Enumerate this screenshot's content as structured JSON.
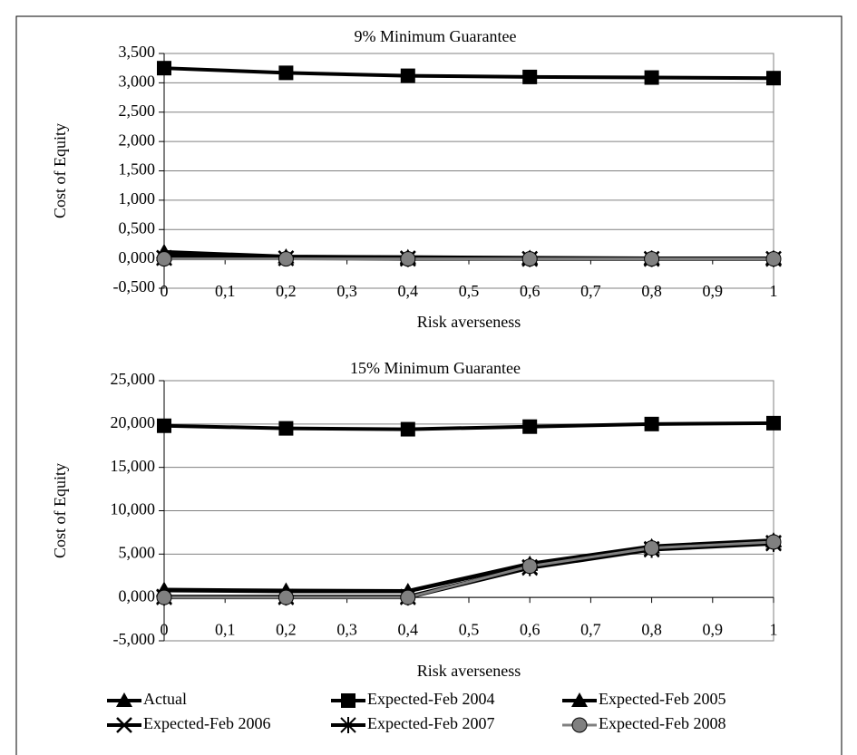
{
  "chart_data": [
    {
      "type": "line",
      "title": "9% Minimum Guarantee",
      "x_label": "Risk averseness",
      "y_label": "Cost of Equity",
      "x": [
        0,
        0.2,
        0.4,
        0.6,
        0.8,
        1
      ],
      "xlim": [
        0,
        1
      ],
      "xticks": [
        0,
        {
          "value": 0.1,
          "label": "0,1"
        },
        {
          "value": 0.2,
          "label": "0,2"
        },
        {
          "value": 0.3,
          "label": "0,3"
        },
        {
          "value": 0.4,
          "label": "0,4"
        },
        {
          "value": 0.5,
          "label": "0,5"
        },
        {
          "value": 0.6,
          "label": "0,6"
        },
        {
          "value": 0.7,
          "label": "0,7"
        },
        {
          "value": 0.8,
          "label": "0,8"
        },
        {
          "value": 0.9,
          "label": "0,9"
        },
        1
      ],
      "ylim": [
        -0.5,
        3.5
      ],
      "yticks": [
        {
          "value": -0.5,
          "label": "-0,500"
        },
        {
          "value": 0,
          "label": "0,000"
        },
        {
          "value": 0.5,
          "label": "0,500"
        },
        {
          "value": 1,
          "label": "1,000"
        },
        {
          "value": 1.5,
          "label": "1,500"
        },
        {
          "value": 2,
          "label": "2,000"
        },
        {
          "value": 2.5,
          "label": "2,500"
        },
        {
          "value": 3,
          "label": "3,000"
        },
        {
          "value": 3.5,
          "label": "3,500"
        }
      ],
      "grid": true,
      "series": [
        {
          "name": "Actual",
          "color": "#000000",
          "marker": "triangle",
          "values": [
            0.12,
            0.04,
            0.03,
            0.02,
            0.01,
            0.01
          ]
        },
        {
          "name": "Expected-Feb 2004",
          "color": "#000000",
          "marker": "square",
          "values": [
            3.25,
            3.17,
            3.12,
            3.1,
            3.09,
            3.08
          ]
        },
        {
          "name": "Expected-Feb 2005",
          "color": "#000000",
          "marker": "triangle",
          "values": [
            0.08,
            0.03,
            0.02,
            0.01,
            0.01,
            0.01
          ]
        },
        {
          "name": "Expected-Feb 2006",
          "color": "#000000",
          "marker": "x",
          "values": [
            0.02,
            0.01,
            0.01,
            0,
            0,
            0
          ]
        },
        {
          "name": "Expected-Feb 2007",
          "color": "#000000",
          "marker": "star",
          "values": [
            0.01,
            0.01,
            0,
            0,
            0,
            0
          ]
        },
        {
          "name": "Expected-Feb 2008",
          "color": "#808080",
          "marker": "circle",
          "values": [
            0,
            0,
            0,
            0,
            0,
            0
          ]
        }
      ]
    },
    {
      "type": "line",
      "title": "15% Minimum Guarantee",
      "x_label": "Risk averseness",
      "y_label": "Cost of Equity",
      "x": [
        0,
        0.2,
        0.4,
        0.6,
        0.8,
        1
      ],
      "xlim": [
        0,
        1
      ],
      "xticks": [
        0,
        {
          "value": 0.1,
          "label": "0,1"
        },
        {
          "value": 0.2,
          "label": "0,2"
        },
        {
          "value": 0.3,
          "label": "0,3"
        },
        {
          "value": 0.4,
          "label": "0,4"
        },
        {
          "value": 0.5,
          "label": "0,5"
        },
        {
          "value": 0.6,
          "label": "0,6"
        },
        {
          "value": 0.7,
          "label": "0,7"
        },
        {
          "value": 0.8,
          "label": "0,8"
        },
        {
          "value": 0.9,
          "label": "0,9"
        },
        1
      ],
      "ylim": [
        -5,
        25
      ],
      "yticks": [
        {
          "value": -5,
          "label": "-5,000"
        },
        {
          "value": 0,
          "label": "0,000"
        },
        {
          "value": 5,
          "label": "5,000"
        },
        {
          "value": 10,
          "label": "10,000"
        },
        {
          "value": 15,
          "label": "15,000"
        },
        {
          "value": 20,
          "label": "20,000"
        },
        {
          "value": 25,
          "label": "25,000"
        }
      ],
      "grid": true,
      "series": [
        {
          "color": "#000000",
          "marker": "triangle",
          "values": [
            0.9,
            0.8,
            0.75,
            3.9,
            5.9,
            6.6
          ]
        },
        {
          "color": "#000000",
          "marker": "square",
          "values": [
            19.8,
            19.5,
            19.4,
            19.7,
            20.0,
            20.1
          ]
        },
        {
          "color": "#000000",
          "marker": "triangle",
          "values": [
            0.8,
            0.7,
            0.7,
            3.8,
            5.8,
            6.5
          ]
        },
        {
          "color": "#000000",
          "marker": "x",
          "values": [
            0.1,
            0.1,
            0.1,
            3.5,
            5.6,
            6.3
          ]
        },
        {
          "color": "#000000",
          "marker": "star",
          "values": [
            0,
            0,
            0,
            3.4,
            5.5,
            6.2
          ]
        },
        {
          "color": "#808080",
          "marker": "circle",
          "values": [
            0,
            0,
            0,
            3.6,
            5.7,
            6.4
          ]
        }
      ]
    }
  ]
}
